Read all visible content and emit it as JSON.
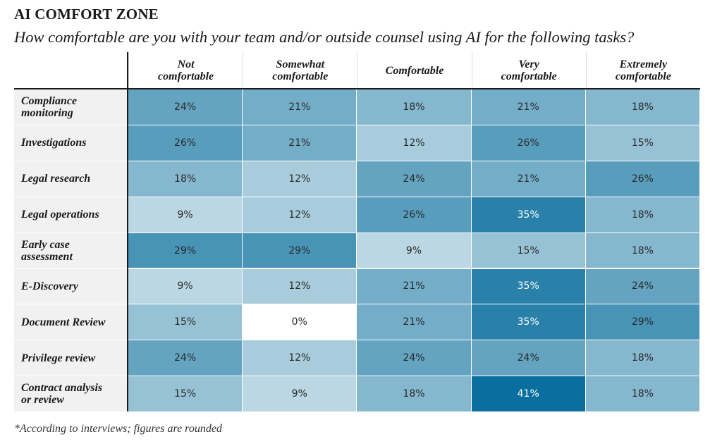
{
  "title": "AI COMFORT ZONE",
  "subtitle": "How comfortable are you with your team and/or outside counsel using AI for the following tasks?",
  "footnote": "*According to interviews; figures are rounded",
  "colors": {
    "low": "#ffffff",
    "high": "#0a6f9e",
    "label_bg": "#f1f1f1"
  },
  "chart_data": {
    "type": "heatmap",
    "columns": [
      "Not comfortable",
      "Somewhat comfortable",
      "Comfortable",
      "Very comfortable",
      "Extremely comfortable"
    ],
    "rows": [
      "Compliance monitoring",
      "Investigations",
      "Legal research",
      "Legal operations",
      "Early case assessment",
      "E-Discovery",
      "Document Review",
      "Privilege review",
      "Contract analysis or review"
    ],
    "values": [
      [
        24,
        21,
        18,
        21,
        18
      ],
      [
        26,
        21,
        12,
        26,
        15
      ],
      [
        18,
        12,
        24,
        21,
        26
      ],
      [
        9,
        12,
        26,
        35,
        18
      ],
      [
        29,
        29,
        9,
        15,
        18
      ],
      [
        9,
        12,
        21,
        35,
        24
      ],
      [
        15,
        0,
        21,
        35,
        29
      ],
      [
        24,
        12,
        24,
        24,
        18
      ],
      [
        15,
        9,
        18,
        41,
        18
      ]
    ],
    "unit": "%"
  }
}
